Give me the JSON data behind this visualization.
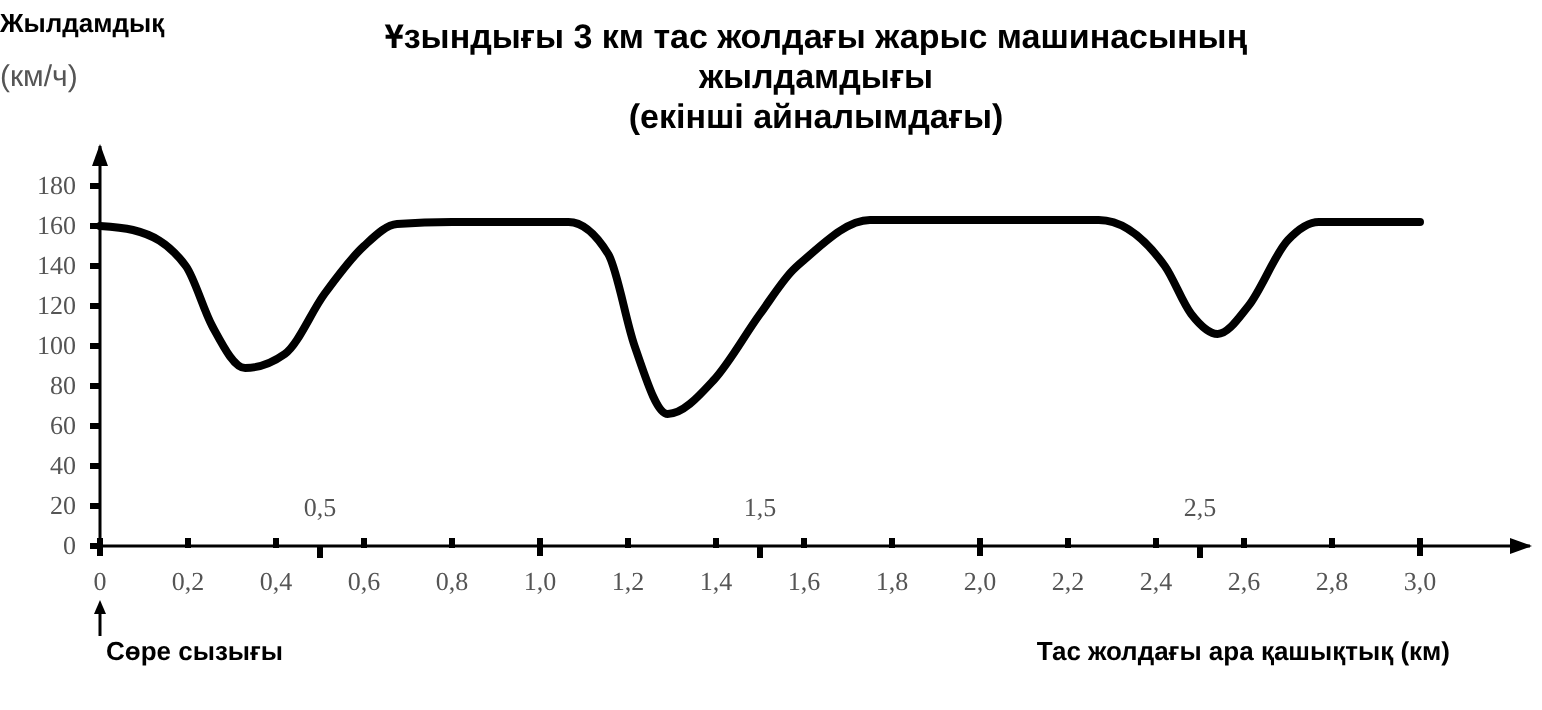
{
  "chart_data": {
    "type": "line",
    "title": "Ұзындығы 3 км тас жолдағы жарыс машинасының\nжылдамдығы\n(екінші айналымдағы)",
    "ylabel": "Жылдамдық\n(км/ч)",
    "xlabel": "Тас жолдағы ара қашықтық (км)",
    "x": [
      0,
      0.075,
      0.195,
      0.255,
      0.33,
      0.42,
      0.51,
      0.6,
      0.675,
      0.8,
      1.0,
      1.065,
      1.155,
      1.215,
      1.29,
      1.395,
      1.5,
      1.575,
      1.6,
      1.75,
      2.0,
      2.27,
      2.42,
      2.48,
      2.54,
      2.61,
      2.7,
      2.77,
      3.0
    ],
    "series": [
      {
        "color": "#000000",
        "values": [
          160,
          158,
          140,
          110,
          89,
          96,
          126,
          150,
          161,
          162,
          162,
          162,
          146,
          100,
          66,
          83,
          116,
          138,
          143,
          163,
          163,
          163,
          140,
          116,
          106,
          120,
          153,
          162,
          162
        ]
      }
    ],
    "xlim": [
      0,
      3.25
    ],
    "ylim": [
      0,
      200
    ],
    "xticks": [
      {
        "value": 0,
        "label": "0"
      },
      {
        "value": 0.2,
        "label": "0,2"
      },
      {
        "value": 0.4,
        "label": "0,4"
      },
      {
        "value": 0.6,
        "label": "0,6"
      },
      {
        "value": 0.8,
        "label": "0,8"
      },
      {
        "value": 1,
        "label": "1,0"
      },
      {
        "value": 1.2,
        "label": "1,2"
      },
      {
        "value": 1.4,
        "label": "1,4"
      },
      {
        "value": 1.6,
        "label": "1,6"
      },
      {
        "value": 1.8,
        "label": "1,8"
      },
      {
        "value": 2,
        "label": "2,0"
      },
      {
        "value": 2.2,
        "label": "2,2"
      },
      {
        "value": 2.4,
        "label": "2,4"
      },
      {
        "value": 2.6,
        "label": "2,6"
      },
      {
        "value": 2.8,
        "label": "2,8"
      },
      {
        "value": 3,
        "label": "3,0"
      }
    ],
    "yticks": [
      0,
      20,
      40,
      60,
      80,
      100,
      120,
      140,
      160,
      180
    ],
    "x2lim": [
      0,
      3.25
    ],
    "x2ticks": [
      {
        "value": 0.5,
        "label": "0,5"
      },
      {
        "value": 1.5,
        "label": "1,5"
      },
      {
        "value": 2.5,
        "label": "2,5"
      }
    ],
    "line_style": "solid",
    "annotations": [
      "Сөре сызығы"
    ]
  }
}
